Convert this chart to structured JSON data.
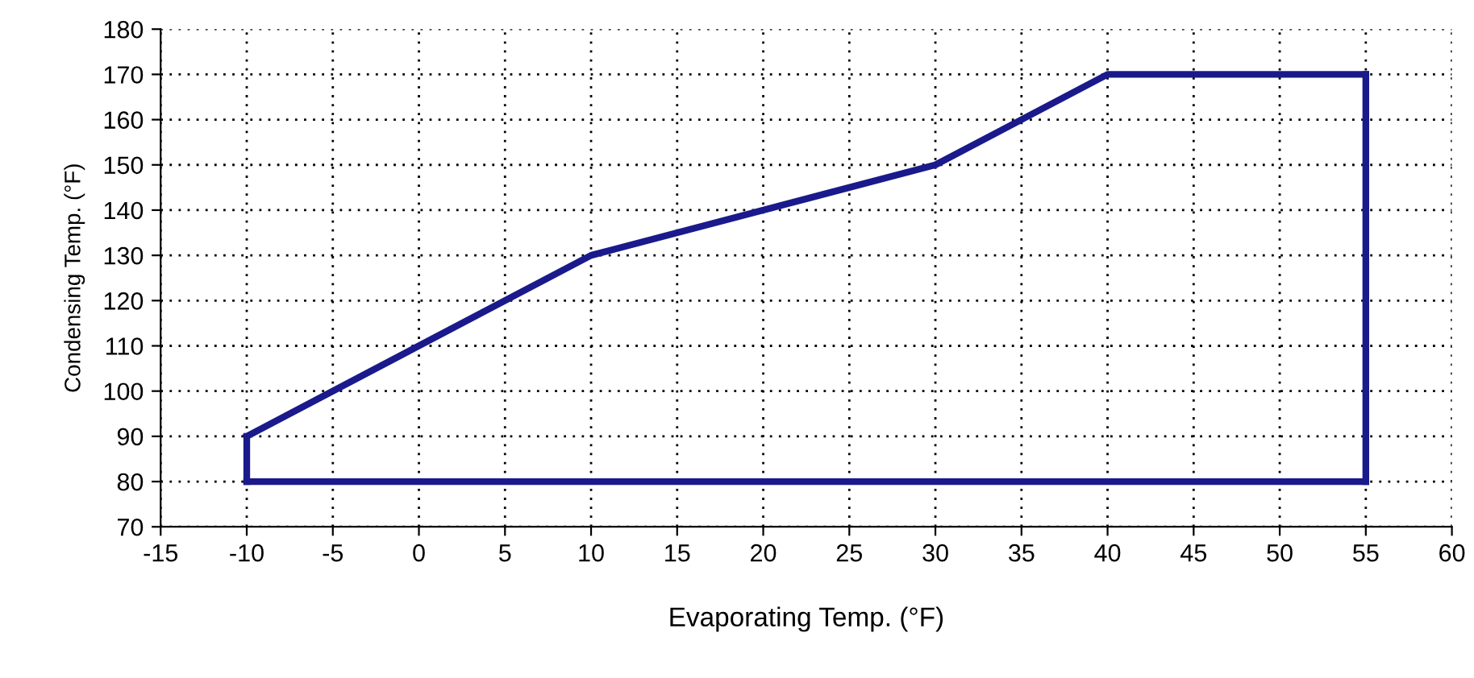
{
  "chart_data": {
    "type": "line",
    "xlabel": "Evaporating Temp. (°F)",
    "ylabel": "Condensing Temp. (°F)",
    "series": [
      {
        "color": "#1a1a8c",
        "x": [
          -10,
          10,
          30,
          40,
          55
        ],
        "values": [
          90,
          130,
          150,
          170,
          170
        ]
      },
      {
        "color": "#1a1a8c",
        "x": [
          -10,
          55
        ],
        "values": [
          80,
          80
        ]
      },
      {
        "color": "#1a1a8c",
        "x": [
          -10,
          -10
        ],
        "values": [
          80,
          90
        ]
      },
      {
        "color": "#1a1a8c",
        "x": [
          55,
          55
        ],
        "values": [
          80,
          170
        ]
      }
    ],
    "xlim": [
      -15,
      60
    ],
    "xticks": [
      -15,
      -10,
      -5,
      0,
      5,
      10,
      15,
      20,
      25,
      30,
      35,
      40,
      45,
      50,
      55,
      60
    ],
    "ylim": [
      70,
      180
    ],
    "yticks": [
      70,
      80,
      90,
      100,
      110,
      120,
      130,
      140,
      150,
      160,
      170,
      180
    ],
    "grid": true,
    "legend": false,
    "marker": "none",
    "line_style": "solid"
  }
}
